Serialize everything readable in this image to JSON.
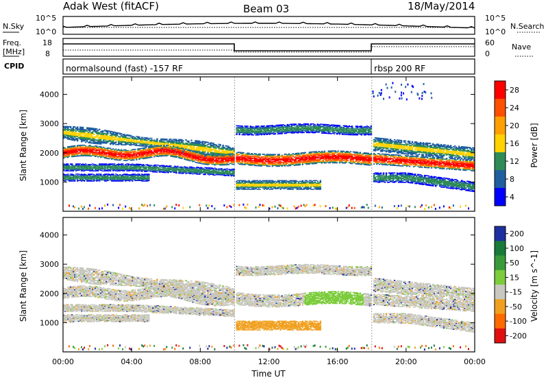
{
  "header": {
    "station": "Adak West (fitACF)",
    "beam": "Beam 03",
    "date": "18/May/2014"
  },
  "top_panels": {
    "nsky_label": "N.Sky",
    "nsky_ticks": [
      "10^5",
      "10^0"
    ],
    "nsearch_label": "N.Search",
    "freq_label": "Freq.",
    "freq_unit": "[MHz]",
    "freq_ticks": [
      "18",
      "8"
    ],
    "nave_label": "Nave",
    "nave_ticks": [
      "60",
      "0"
    ],
    "cpid_label": "CPID",
    "cpid_segments": [
      "normalsound (fast) -157 RF",
      "rbsp 200 RF"
    ]
  },
  "colorbars": {
    "power": {
      "label": "Power [dB]",
      "ticks": [
        "28",
        "24",
        "20",
        "16",
        "12",
        "8",
        "4"
      ],
      "colors": [
        "#ff0000",
        "#ff5000",
        "#ffa000",
        "#ffd200",
        "#2e8b57",
        "#1f5fa0",
        "#0000ff"
      ]
    },
    "velocity": {
      "label": "Velocity [m s^-1]",
      "ticks": [
        "200",
        "100",
        "50",
        "15",
        "-15",
        "-50",
        "-100",
        "-200"
      ],
      "colors": [
        "#1e2fa0",
        "#1a7a3a",
        "#3a9a3a",
        "#7ccc3c",
        "#c8c8c0",
        "#f0a020",
        "#ff6a00",
        "#e01010"
      ]
    }
  },
  "chart_data": [
    {
      "type": "heatmap",
      "title": "",
      "xlabel": "",
      "ylabel": "Slant Range [km]",
      "yticks": [
        "1000",
        "2000",
        "3000",
        "4000"
      ],
      "ylim": [
        0,
        4600
      ],
      "xlim": [
        "00:00",
        "24:00"
      ],
      "variable": "Power [dB]"
    },
    {
      "type": "heatmap",
      "title": "",
      "xlabel": "Time UT",
      "ylabel": "Slant Range [km]",
      "yticks": [
        "1000",
        "2000",
        "3000",
        "4000"
      ],
      "xticks": [
        "00:00",
        "04:00",
        "08:00",
        "12:00",
        "16:00",
        "20:00",
        "00:00"
      ],
      "ylim": [
        0,
        4600
      ],
      "xlim": [
        "00:00",
        "24:00"
      ],
      "variable": "Velocity [m s^-1]"
    }
  ]
}
